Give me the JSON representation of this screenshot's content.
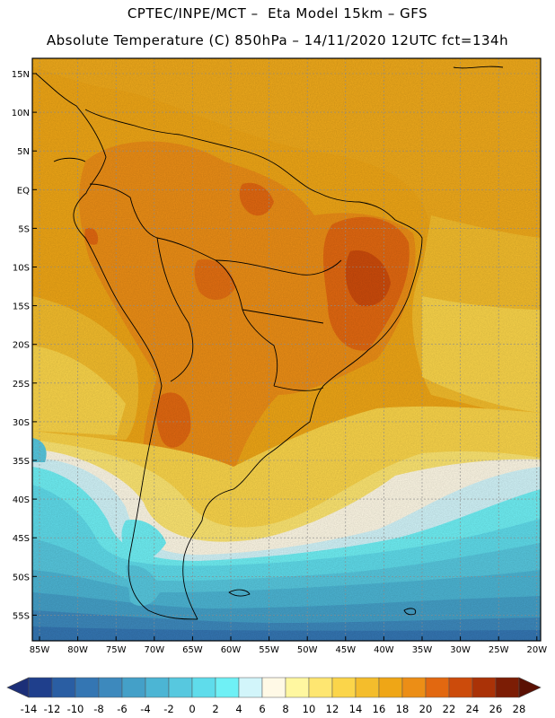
{
  "header": {
    "line1": "CPTEC/INPE/MCT –  Eta Model 15km – GFS",
    "line2": "Absolute Temperature (C) 850hPa – 14/11/2020 12UTC fct=134h"
  },
  "axes": {
    "lat_labels": [
      "15N",
      "10N",
      "5N",
      "EQ",
      "5S",
      "10S",
      "15S",
      "20S",
      "25S",
      "30S",
      "35S",
      "40S",
      "45S",
      "50S",
      "55S"
    ],
    "lon_labels": [
      "85W",
      "80W",
      "75W",
      "70W",
      "65W",
      "60W",
      "55W",
      "50W",
      "45W",
      "40W",
      "35W",
      "30W",
      "25W",
      "20W"
    ]
  },
  "colorbar": {
    "labels": [
      "-14",
      "-12",
      "-10",
      "-8",
      "-6",
      "-4",
      "-2",
      "0",
      "2",
      "4",
      "6",
      "8",
      "10",
      "12",
      "14",
      "16",
      "18",
      "20",
      "22",
      "24",
      "26",
      "28"
    ],
    "colors": [
      "#1f3f8c",
      "#2a5ea3",
      "#3476b3",
      "#3d89bd",
      "#44a0c8",
      "#4cb5d4",
      "#57c8df",
      "#5fdceb",
      "#6ff0f5",
      "#d2f5fa",
      "#fff9e6",
      "#fff7a0",
      "#fee671",
      "#fbd54a",
      "#f4bd2c",
      "#efa616",
      "#ec8e16",
      "#e26810",
      "#cc4b0b",
      "#aa3207",
      "#7c1d05"
    ],
    "low_color": "#1c2f78",
    "high_color": "#5a1003"
  }
}
